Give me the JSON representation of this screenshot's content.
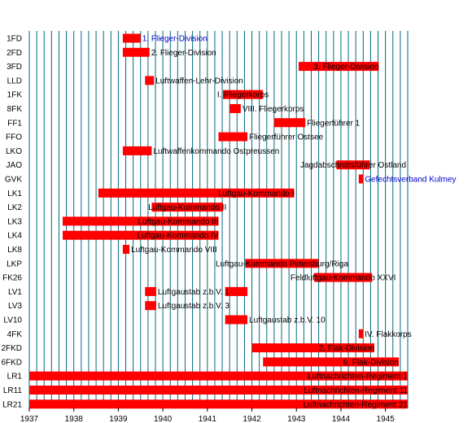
{
  "chart_data": {
    "type": "bar",
    "orientation": "horizontal-timeline",
    "title": "",
    "xlabel": "",
    "ylabel": "",
    "xlim": [
      1937.0,
      1945.5
    ],
    "x_ticks": [
      "1937",
      "1938",
      "1939",
      "1940",
      "1941",
      "1942",
      "1943",
      "1944",
      "1945"
    ],
    "grid": true,
    "colors": {
      "bar": "#ff0000",
      "grid": "#006b80",
      "label_default": "#000000",
      "label_link": "#0000cc"
    },
    "rows": [
      {
        "id": "1FD",
        "bars": [
          {
            "start": 1939.1,
            "end": 1939.5,
            "label": "1. Flieger-Division",
            "link": true
          }
        ]
      },
      {
        "id": "2FD",
        "bars": [
          {
            "start": 1939.1,
            "end": 1939.7,
            "label": "2. Flieger-Division"
          }
        ]
      },
      {
        "id": "3FD",
        "bars": [
          {
            "start": 1943.05,
            "end": 1944.85,
            "label": "3. Flieger-Division"
          }
        ]
      },
      {
        "id": "LLD",
        "bars": [
          {
            "start": 1939.6,
            "end": 1939.8,
            "label": "Luftwaffen-Lehr-Division"
          }
        ]
      },
      {
        "id": "1FK",
        "bars": [
          {
            "start": 1941.35,
            "end": 1942.25,
            "label": "I. Fliegerkorps"
          }
        ]
      },
      {
        "id": "8FK",
        "bars": [
          {
            "start": 1941.5,
            "end": 1941.75,
            "label": "VIII. Fliegerkorps"
          }
        ]
      },
      {
        "id": "FF1",
        "bars": [
          {
            "start": 1942.5,
            "end": 1943.2,
            "label": "Fliegerführer 1"
          }
        ]
      },
      {
        "id": "FFO",
        "bars": [
          {
            "start": 1941.25,
            "end": 1941.9,
            "label": "Fliegerführer Ostsee"
          }
        ]
      },
      {
        "id": "LKO",
        "bars": [
          {
            "start": 1939.1,
            "end": 1939.75,
            "label": "Luftwaffenkommando Ostpreussen"
          }
        ]
      },
      {
        "id": "JAO",
        "bars": [
          {
            "start": 1943.9,
            "end": 1944.65,
            "label": "Jagdabschnittsführer Ostland"
          }
        ]
      },
      {
        "id": "GVK",
        "bars": [
          {
            "start": 1944.4,
            "end": 1944.5,
            "label": "Gefechtsverband Kulmey",
            "link": true
          }
        ]
      },
      {
        "id": "LK1",
        "bars": [
          {
            "start": 1938.55,
            "end": 1942.95,
            "label": "Luftgau-Kommando I"
          }
        ]
      },
      {
        "id": "LK2",
        "bars": [
          {
            "start": 1939.75,
            "end": 1941.35,
            "label": "Luftgau-Kommando II"
          }
        ]
      },
      {
        "id": "LK3",
        "bars": [
          {
            "start": 1937.75,
            "end": 1941.25,
            "label": "Luftgau-Kommando III"
          }
        ]
      },
      {
        "id": "LK4",
        "bars": [
          {
            "start": 1937.75,
            "end": 1941.25,
            "label": "Luftgau-Kommando IV"
          }
        ]
      },
      {
        "id": "LK8",
        "bars": [
          {
            "start": 1939.1,
            "end": 1939.25,
            "label": "Luftgau-Kommando VIII"
          }
        ]
      },
      {
        "id": "LKP",
        "bars": [
          {
            "start": 1941.85,
            "end": 1943.5,
            "label": "Luftgau-Kommando Petersburg/Riga"
          }
        ]
      },
      {
        "id": "FK26",
        "bars": [
          {
            "start": 1943.4,
            "end": 1944.7,
            "label": "Feldluftgau-Kommando XXVI"
          }
        ]
      },
      {
        "id": "LV1",
        "bars": [
          {
            "start": 1939.6,
            "end": 1939.85,
            "label": "Luftgaustab z.b.V. 1"
          },
          {
            "start": 1941.4,
            "end": 1941.9,
            "label": ""
          }
        ]
      },
      {
        "id": "LV3",
        "bars": [
          {
            "start": 1939.6,
            "end": 1939.85,
            "label": "Luftgaustab z.b.V. 3"
          }
        ]
      },
      {
        "id": "LV10",
        "bars": [
          {
            "start": 1941.4,
            "end": 1941.9,
            "label": "Luftgaustab z.b.V. 10"
          }
        ]
      },
      {
        "id": "4FK",
        "bars": [
          {
            "start": 1944.4,
            "end": 1944.5,
            "label": "IV. Flakkorps"
          }
        ]
      },
      {
        "id": "2FKD",
        "bars": [
          {
            "start": 1942.0,
            "end": 1944.75,
            "label": "2. Flak-Division"
          }
        ]
      },
      {
        "id": "6FKD",
        "bars": [
          {
            "start": 1942.25,
            "end": 1945.3,
            "label": "6. Flak-Division"
          }
        ]
      },
      {
        "id": "LR1",
        "bars": [
          {
            "start": 1937.0,
            "end": 1945.5,
            "label": "Luftnachrichten-Regiment 1"
          }
        ]
      },
      {
        "id": "LR11",
        "bars": [
          {
            "start": 1937.0,
            "end": 1945.5,
            "label": "Luftnachrichten-Regiment 11"
          }
        ]
      },
      {
        "id": "LR21",
        "bars": [
          {
            "start": 1937.0,
            "end": 1945.5,
            "label": "Luftnachrichten-Regiment 21"
          }
        ]
      }
    ]
  }
}
